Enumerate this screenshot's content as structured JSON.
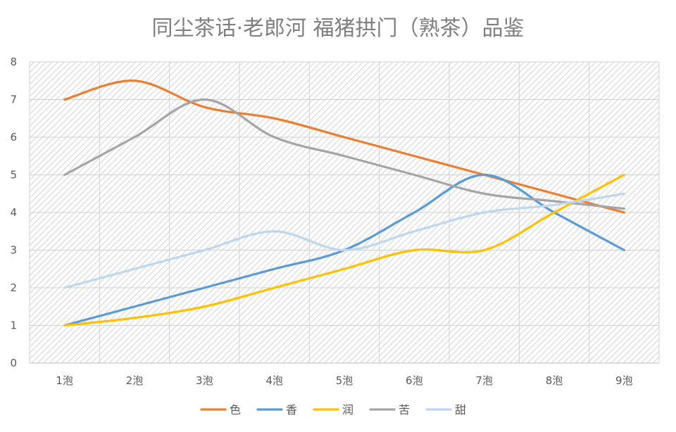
{
  "chart_data": {
    "type": "line",
    "title": "同尘茶话·老郎河 福猪拱门（熟茶）品鉴",
    "xlabel": "",
    "ylabel": "",
    "categories": [
      "1泡",
      "2泡",
      "3泡",
      "4泡",
      "5泡",
      "6泡",
      "7泡",
      "8泡",
      "9泡"
    ],
    "ylim": [
      0,
      8
    ],
    "yticks": [
      "0",
      "1",
      "2",
      "3",
      "4",
      "5",
      "6",
      "7",
      "8"
    ],
    "grid": true,
    "smooth": true,
    "legend_position": "bottom",
    "series": [
      {
        "name": "色",
        "color": "#ED7D31",
        "values": [
          7,
          7.5,
          6.8,
          6.5,
          6,
          5.5,
          5,
          4.5,
          4
        ]
      },
      {
        "name": "香",
        "color": "#5B9BD5",
        "values": [
          1,
          1.5,
          2,
          2.5,
          3,
          4,
          5,
          4,
          3
        ]
      },
      {
        "name": "润",
        "color": "#FFC000",
        "values": [
          1,
          1.2,
          1.5,
          2,
          2.5,
          3,
          3,
          4,
          5
        ]
      },
      {
        "name": "苦",
        "color": "#A5A5A5",
        "values": [
          5,
          6,
          7,
          6,
          5.5,
          5,
          4.5,
          4.3,
          4.1
        ]
      },
      {
        "name": "甜",
        "color": "#BDD7EE",
        "values": [
          2,
          2.5,
          3,
          3.5,
          3,
          3.5,
          4,
          4.2,
          4.5
        ]
      }
    ]
  }
}
